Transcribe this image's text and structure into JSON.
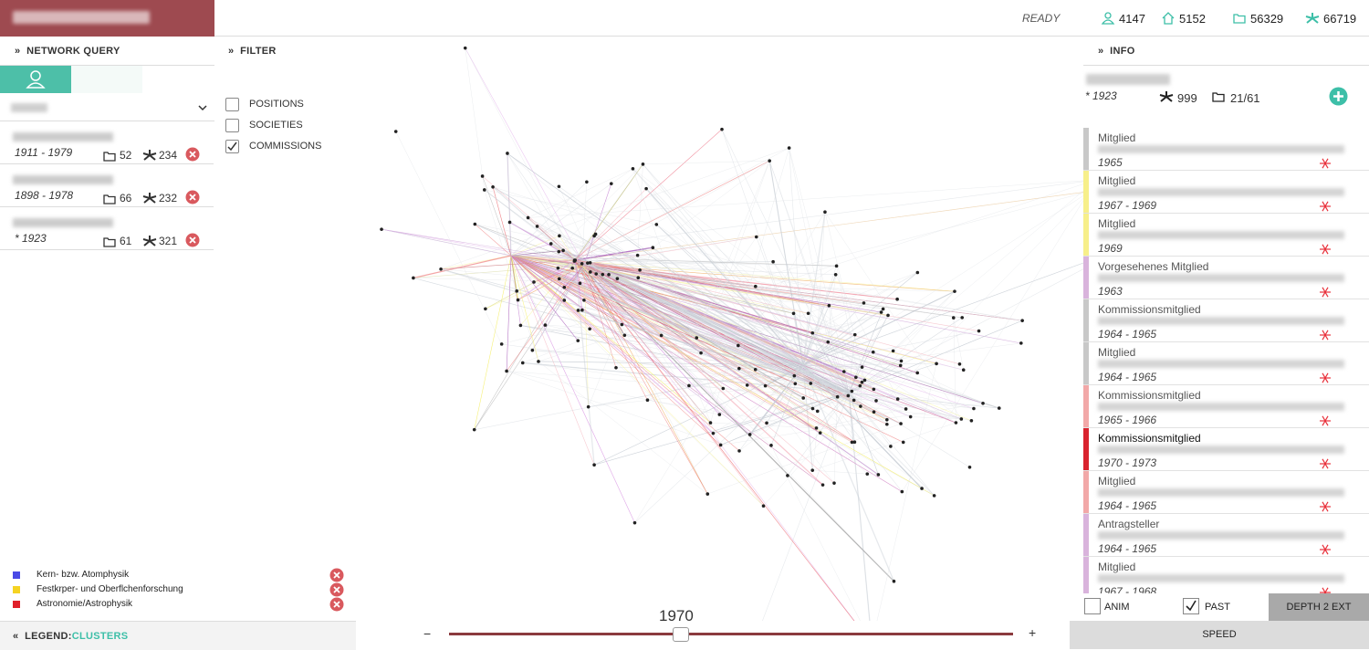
{
  "header": {
    "status": "READY",
    "counts": [
      "4147",
      "5152",
      "56329",
      "66719"
    ]
  },
  "network_query": {
    "title": "NETWORK QUERY",
    "items": [
      {
        "dates": "1911 - 1979",
        "docs": "52",
        "links": "234"
      },
      {
        "dates": "1898 - 1978",
        "docs": "66",
        "links": "232"
      },
      {
        "dates": "* 1923",
        "docs": "61",
        "links": "321"
      }
    ]
  },
  "filter": {
    "title": "FILTER",
    "options": [
      {
        "label": "POSITIONS",
        "checked": false
      },
      {
        "label": "SOCIETIES",
        "checked": false
      },
      {
        "label": "COMMISSIONS",
        "checked": true
      }
    ]
  },
  "info": {
    "title": "INFO",
    "dates": "* 1923",
    "links": "999",
    "docs": "21/61",
    "entries": [
      {
        "role": "Mitglied",
        "dates": "1965",
        "color": "#c8c8c8"
      },
      {
        "role": "Mitglied",
        "dates": "1967 - 1969",
        "color": "#f7ef8a"
      },
      {
        "role": "Mitglied",
        "dates": "1969",
        "color": "#f7ef8a"
      },
      {
        "role": "Vorgesehenes Mitglied",
        "dates": "1963",
        "color": "#d9b3dc"
      },
      {
        "role": "Kommissionsmitglied",
        "dates": "1964 - 1965",
        "color": "#c8c8c8"
      },
      {
        "role": "Mitglied",
        "dates": "1964 - 1965",
        "color": "#c8c8c8"
      },
      {
        "role": "Kommissionsmitglied",
        "dates": "1965 - 1966",
        "color": "#f2a8a8"
      },
      {
        "role": "Kommissionsmitglied",
        "dates": "1970 - 1973",
        "color": "#d9232e"
      },
      {
        "role": "Mitglied",
        "dates": "1964 - 1965",
        "color": "#f2a8a8"
      },
      {
        "role": "Antragsteller",
        "dates": "1964 - 1965",
        "color": "#d9b3dc"
      },
      {
        "role": "Mitglied",
        "dates": "1967 - 1968",
        "color": "#d9b3dc"
      }
    ]
  },
  "legend": {
    "label": "LEGEND:",
    "mode": "CLUSTERS",
    "items": [
      {
        "name": "Kern- bzw. Atomphysik",
        "color": "#4a4ae6"
      },
      {
        "name": "Festkrper- und Oberflchenforschung",
        "color": "#f5d322"
      },
      {
        "name": "Astronomie/Astrophysik",
        "color": "#e0202a"
      }
    ]
  },
  "timeline": {
    "year": "1970",
    "minus": "−",
    "plus": "+"
  },
  "controls": {
    "anim": {
      "label": "ANIM",
      "checked": false
    },
    "past": {
      "label": "PAST",
      "checked": true
    },
    "depth": "DEPTH 2 EXT",
    "speed": "SPEED"
  }
}
